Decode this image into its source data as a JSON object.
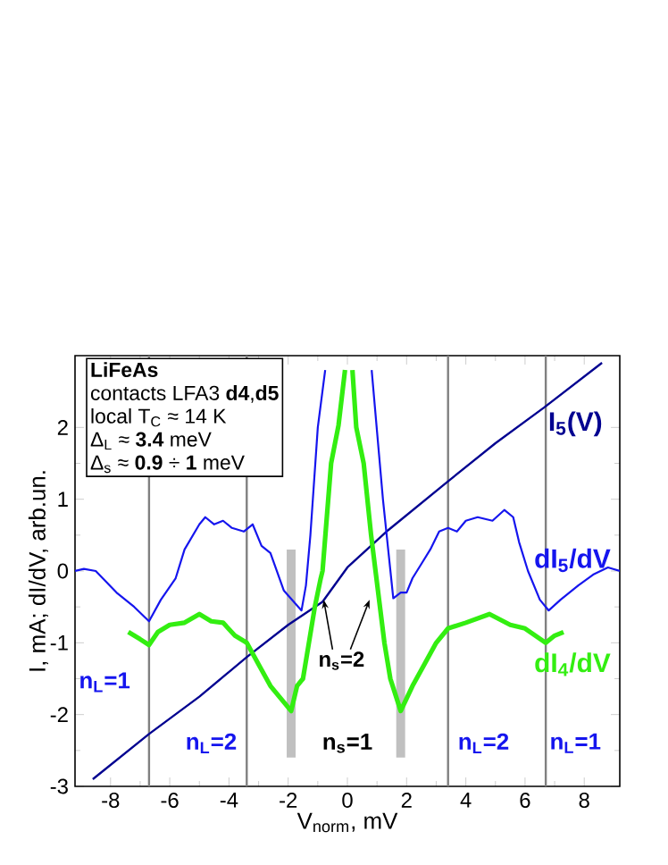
{
  "chart_data": {
    "type": "line",
    "title": "LiFeAs",
    "xlabel": "V$_{norm}$, mV",
    "ylabel": "I, mA; dI/dV, arb.un.",
    "xlim": [
      -9.2,
      9.2
    ],
    "ylim": [
      -3,
      3
    ],
    "xticks": [
      -8,
      -6,
      -4,
      -2,
      0,
      2,
      4,
      6,
      8
    ],
    "yticks": [
      -3,
      -2,
      -1,
      0,
      1,
      2
    ],
    "series": [
      {
        "name": "I$_{5}$(V)",
        "color": "#000090",
        "x": [
          -8.6,
          -6.7,
          -5.0,
          -3.4,
          -2.0,
          -0.84,
          0.0,
          1.38,
          3.4,
          5.0,
          6.65,
          8.6
        ],
        "values": [
          -2.9,
          -2.27,
          -1.75,
          -1.2,
          -0.75,
          -0.43,
          0.05,
          0.57,
          1.25,
          1.78,
          2.28,
          2.9
        ]
      },
      {
        "name": "dI$_{5}$/dV",
        "color": "#1515ee",
        "x": [
          -9.2,
          -8.9,
          -8.5,
          -7.8,
          -7.2,
          -6.7,
          -6.3,
          -5.8,
          -5.5,
          -5.0,
          -4.8,
          -4.5,
          -4.2,
          -3.9,
          -3.5,
          -3.2,
          -2.9,
          -2.6,
          -2.15,
          -1.55,
          -1.4,
          -1.25,
          -1.0,
          -0.75,
          0.0,
          0.82,
          1.2,
          1.55,
          1.8,
          2.0,
          2.2,
          2.5,
          2.8,
          3.1,
          3.4,
          3.7,
          4.0,
          4.4,
          4.9,
          5.3,
          5.6,
          5.8,
          6.1,
          6.5,
          6.8,
          7.2,
          7.8,
          8.3,
          8.8,
          9.2
        ],
        "values": [
          0.0,
          0.03,
          0.0,
          -0.3,
          -0.5,
          -0.7,
          -0.4,
          -0.1,
          0.3,
          0.65,
          0.75,
          0.65,
          0.7,
          0.6,
          0.55,
          0.65,
          0.35,
          0.25,
          -0.27,
          -0.55,
          -0.2,
          0.5,
          2.0,
          2.8,
          null,
          2.8,
          1.0,
          -0.38,
          -0.3,
          -0.3,
          -0.1,
          0.1,
          0.3,
          0.55,
          0.6,
          0.55,
          0.7,
          0.75,
          0.7,
          0.85,
          0.75,
          0.4,
          0.0,
          -0.4,
          -0.55,
          -0.4,
          -0.2,
          -0.05,
          0.05,
          0.0
        ]
      },
      {
        "name": "dI$_{4}$/dV",
        "color": "#33ee11",
        "x": [
          -7.4,
          -7.0,
          -6.7,
          -6.4,
          -6.0,
          -5.5,
          -5.0,
          -4.6,
          -4.2,
          -3.8,
          -3.4,
          -3.0,
          -2.6,
          -2.3,
          -1.9,
          -1.7,
          -1.5,
          -1.3,
          -1.1,
          -0.9,
          -0.84,
          -0.55,
          -0.3,
          -0.08,
          0.0,
          0.17,
          0.3,
          0.55,
          0.8,
          0.95,
          1.1,
          1.25,
          1.45,
          1.8,
          2.2,
          2.6,
          3.0,
          3.4,
          4.0,
          4.8,
          5.5,
          6.0,
          6.7,
          7.0,
          7.3
        ],
        "values": [
          -0.85,
          -0.95,
          -1.03,
          -0.85,
          -0.75,
          -0.72,
          -0.6,
          -0.7,
          -0.72,
          -0.9,
          -1.0,
          -1.3,
          -1.6,
          -1.75,
          -1.95,
          -1.6,
          -1.5,
          -1.0,
          -0.5,
          -0.1,
          0.0,
          1.5,
          2.03,
          2.8,
          null,
          2.8,
          2.0,
          1.5,
          0.5,
          0.0,
          -0.5,
          -1.0,
          -1.5,
          -1.95,
          -1.6,
          -1.3,
          -1.0,
          -0.8,
          -0.72,
          -0.6,
          -0.75,
          -0.8,
          -1.0,
          -0.9,
          -0.85
        ]
      },
      {
        "color": "#c0c0c0",
        "x": [
          -1.9,
          -1.9
        ],
        "values": [
          -2.6,
          0.3
        ]
      },
      {
        "color": "#c0c0c0",
        "x": [
          1.8,
          1.8
        ],
        "values": [
          -2.6,
          0.3
        ]
      }
    ],
    "ref_lines": [
      {
        "axis": "x",
        "value": -6.7,
        "color": "#808080"
      },
      {
        "axis": "x",
        "value": -3.4,
        "color": "#808080"
      },
      {
        "axis": "x",
        "value": 3.4,
        "color": "#808080"
      },
      {
        "axis": "x",
        "value": 6.7,
        "color": "#808080"
      }
    ],
    "annotations": [
      "contacts LFA3 **d4**,**d5**",
      "local  T$_{C}$ ≈ 14 K",
      "Δ$_{L}$ ≈ **3.4** meV",
      "Δ$_{s}$ ≈ **0.9** ÷ **1** meV",
      "n$_{L}$=1",
      "n$_{L}$=2",
      "n$_{s}$=1",
      "n$_{L}$=2",
      "n$_{L}$=1",
      {
        "text": "n$_{s}$=2",
        "x": -0.8,
        "y": -0.4
      }
    ],
    "grid": false
  }
}
